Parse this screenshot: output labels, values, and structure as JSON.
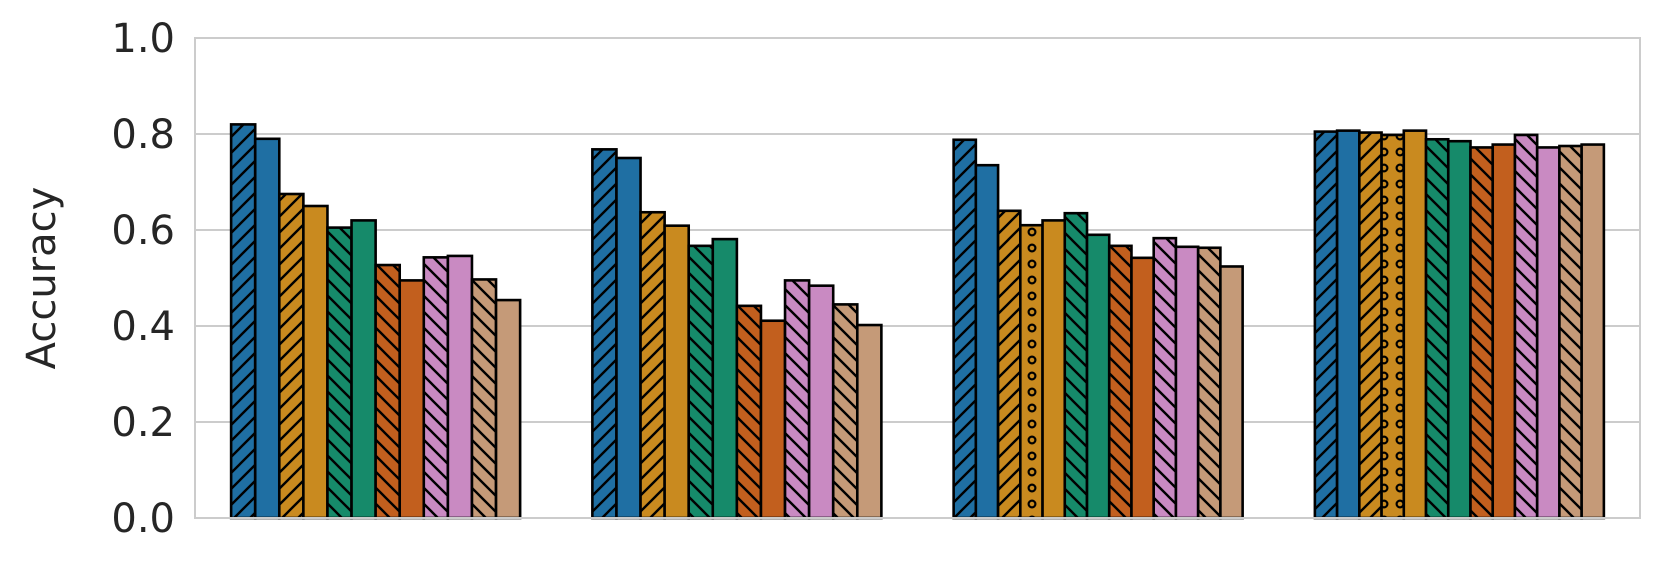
{
  "chart_data": {
    "type": "bar",
    "ylabel": "Accuracy",
    "ylim": [
      0,
      1.0
    ],
    "yticks": [
      "0.0",
      "0.2",
      "0.4",
      "0.6",
      "0.8",
      "1.0"
    ],
    "grid": true,
    "legend": "none",
    "groups": [
      {
        "bars": [
          {
            "value": 0.82,
            "color": "#1f6fa3",
            "pattern": "hatch-fwd"
          },
          {
            "value": 0.79,
            "color": "#1f6fa3",
            "pattern": "none"
          },
          {
            "value": 0.675,
            "color": "#c98a1f",
            "pattern": "hatch-fwd"
          },
          {
            "value": 0.65,
            "color": "#c98a1f",
            "pattern": "none"
          },
          {
            "value": 0.605,
            "color": "#168a6a",
            "pattern": "hatch-back"
          },
          {
            "value": 0.62,
            "color": "#168a6a",
            "pattern": "none"
          },
          {
            "value": 0.527,
            "color": "#c25f1e",
            "pattern": "hatch-back"
          },
          {
            "value": 0.495,
            "color": "#c25f1e",
            "pattern": "none"
          },
          {
            "value": 0.543,
            "color": "#c98ac2",
            "pattern": "hatch-back"
          },
          {
            "value": 0.546,
            "color": "#c98ac2",
            "pattern": "none"
          },
          {
            "value": 0.497,
            "color": "#c59a78",
            "pattern": "hatch-back"
          },
          {
            "value": 0.454,
            "color": "#c59a78",
            "pattern": "none"
          }
        ]
      },
      {
        "bars": [
          {
            "value": 0.768,
            "color": "#1f6fa3",
            "pattern": "hatch-fwd"
          },
          {
            "value": 0.75,
            "color": "#1f6fa3",
            "pattern": "none"
          },
          {
            "value": 0.637,
            "color": "#c98a1f",
            "pattern": "hatch-fwd"
          },
          {
            "value": 0.609,
            "color": "#c98a1f",
            "pattern": "none"
          },
          {
            "value": 0.567,
            "color": "#168a6a",
            "pattern": "hatch-back"
          },
          {
            "value": 0.581,
            "color": "#168a6a",
            "pattern": "none"
          },
          {
            "value": 0.442,
            "color": "#c25f1e",
            "pattern": "hatch-back"
          },
          {
            "value": 0.411,
            "color": "#c25f1e",
            "pattern": "none"
          },
          {
            "value": 0.495,
            "color": "#c98ac2",
            "pattern": "hatch-back"
          },
          {
            "value": 0.484,
            "color": "#c98ac2",
            "pattern": "none"
          },
          {
            "value": 0.445,
            "color": "#c59a78",
            "pattern": "hatch-back"
          },
          {
            "value": 0.402,
            "color": "#c59a78",
            "pattern": "none"
          }
        ]
      },
      {
        "bars": [
          {
            "value": 0.788,
            "color": "#1f6fa3",
            "pattern": "hatch-fwd"
          },
          {
            "value": 0.735,
            "color": "#1f6fa3",
            "pattern": "none"
          },
          {
            "value": 0.64,
            "color": "#c98a1f",
            "pattern": "hatch-fwd"
          },
          {
            "value": 0.61,
            "color": "#c98a1f",
            "pattern": "dots"
          },
          {
            "value": 0.62,
            "color": "#c98a1f",
            "pattern": "none"
          },
          {
            "value": 0.635,
            "color": "#168a6a",
            "pattern": "hatch-back"
          },
          {
            "value": 0.59,
            "color": "#168a6a",
            "pattern": "none"
          },
          {
            "value": 0.567,
            "color": "#c25f1e",
            "pattern": "hatch-back"
          },
          {
            "value": 0.542,
            "color": "#c25f1e",
            "pattern": "none"
          },
          {
            "value": 0.583,
            "color": "#c98ac2",
            "pattern": "hatch-back"
          },
          {
            "value": 0.565,
            "color": "#c98ac2",
            "pattern": "none"
          },
          {
            "value": 0.563,
            "color": "#c59a78",
            "pattern": "hatch-back"
          },
          {
            "value": 0.524,
            "color": "#c59a78",
            "pattern": "none"
          }
        ]
      },
      {
        "bars": [
          {
            "value": 0.805,
            "color": "#1f6fa3",
            "pattern": "hatch-fwd"
          },
          {
            "value": 0.807,
            "color": "#1f6fa3",
            "pattern": "none"
          },
          {
            "value": 0.803,
            "color": "#c98a1f",
            "pattern": "hatch-fwd"
          },
          {
            "value": 0.798,
            "color": "#c98a1f",
            "pattern": "dots"
          },
          {
            "value": 0.807,
            "color": "#c98a1f",
            "pattern": "none"
          },
          {
            "value": 0.789,
            "color": "#168a6a",
            "pattern": "hatch-back"
          },
          {
            "value": 0.785,
            "color": "#168a6a",
            "pattern": "none"
          },
          {
            "value": 0.772,
            "color": "#c25f1e",
            "pattern": "hatch-back"
          },
          {
            "value": 0.778,
            "color": "#c25f1e",
            "pattern": "none"
          },
          {
            "value": 0.798,
            "color": "#c98ac2",
            "pattern": "hatch-back"
          },
          {
            "value": 0.772,
            "color": "#c98ac2",
            "pattern": "none"
          },
          {
            "value": 0.775,
            "color": "#c59a78",
            "pattern": "hatch-back"
          },
          {
            "value": 0.778,
            "color": "#c59a78",
            "pattern": "none"
          }
        ]
      }
    ]
  }
}
